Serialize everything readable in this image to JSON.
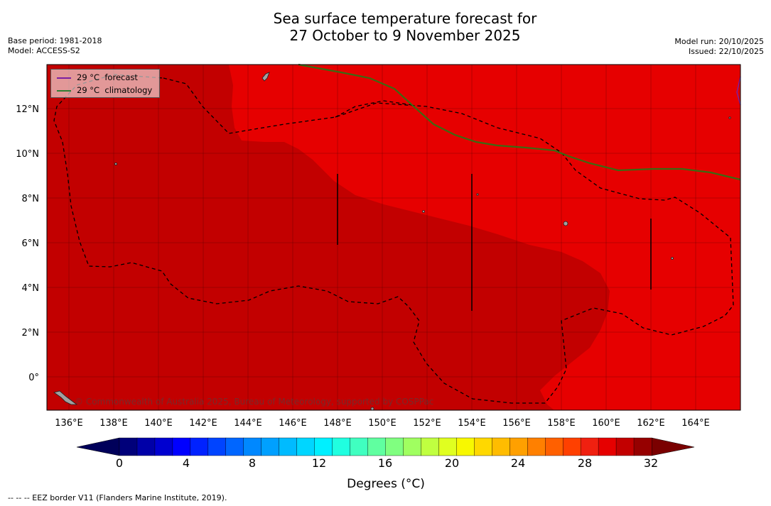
{
  "header": {
    "title_line1": "Sea surface temperature forecast for",
    "title_line2": "27 October to 9 November 2025",
    "base_period": "Base period: 1981-2018",
    "model": "Model: ACCESS-S2",
    "model_run": "Model run: 20/10/2025",
    "issued": "Issued: 22/10/2025"
  },
  "legend": {
    "items": [
      {
        "label": "29 °C  forecast",
        "color": "#7b1fa2"
      },
      {
        "label": "29 °C  climatology",
        "color": "#2e7d32"
      }
    ]
  },
  "map": {
    "lat_labels": [
      "12°N",
      "10°N",
      "8°N",
      "6°N",
      "4°N",
      "2°N",
      "0°"
    ],
    "lon_labels": [
      "136°E",
      "138°E",
      "140°E",
      "142°E",
      "144°E",
      "146°E",
      "148°E",
      "150°E",
      "152°E",
      "154°E",
      "156°E",
      "158°E",
      "160°E",
      "162°E",
      "164°E"
    ],
    "credit": "© Commonwealth of Australia 2025, Bureau of Meteorology, supported by COSPPac",
    "colors": {
      "warm_29_30": "#e60000",
      "warm_30_31": "#c20000",
      "land": "#a0a0a0"
    }
  },
  "colorbar": {
    "tick_labels": [
      "0",
      "4",
      "8",
      "12",
      "16",
      "20",
      "24",
      "28",
      "32"
    ],
    "title": "Degrees (°C)",
    "colors": [
      "#00007a",
      "#0000a8",
      "#0000d0",
      "#0000ff",
      "#0022ff",
      "#0044ff",
      "#0066ff",
      "#0088ff",
      "#00a0ff",
      "#00bbff",
      "#00d6ff",
      "#00f0ff",
      "#20ffe0",
      "#40ffc0",
      "#60ffa0",
      "#80ff80",
      "#a0ff60",
      "#c0ff40",
      "#e0ff20",
      "#f8f800",
      "#ffd800",
      "#ffbc00",
      "#ffa000",
      "#ff8000",
      "#ff6000",
      "#ff4000",
      "#f02010",
      "#e60000",
      "#c20000",
      "#960000"
    ],
    "low_extend": "#00005a",
    "high_extend": "#7a0000"
  },
  "footer": {
    "text": "--  --  -- EEZ border V11 (Flanders Marine Institute, 2019)."
  }
}
